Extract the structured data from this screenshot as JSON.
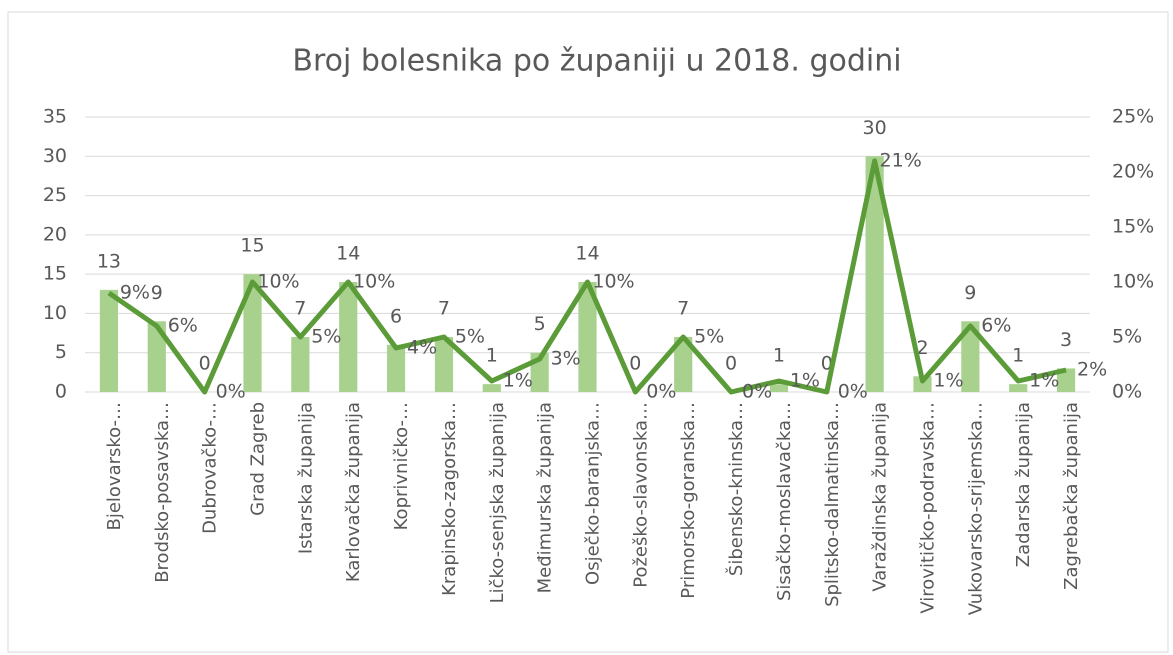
{
  "chart_data": {
    "type": "bar_line",
    "title": "Broj bolesnika po županiji u 2018. godini",
    "categories": [
      "Bjelovarsko-…",
      "Brodsko-posavska…",
      "Dubrovačko-…",
      "Grad Zagreb",
      "Istarska županija",
      "Karlovačka županija",
      "Koprivničko-…",
      "Krapinsko-zagorska…",
      "Ličko-senjska županija",
      "Međimurska županija",
      "Osječko-baranjska…",
      "Požeško-slavonska…",
      "Primorsko-goranska…",
      "Šibensko-kninska…",
      "Sisačko-moslavačka…",
      "Splitsko-dalmatinska…",
      "Varaždinska županija",
      "Virovitičko-podravska…",
      "Vukovarsko-srijemska…",
      "Zadarska županija",
      "Zagrebačka županija"
    ],
    "series": [
      {
        "type": "bar",
        "color": "#a9d18e",
        "values": [
          13,
          9,
          0,
          15,
          7,
          14,
          6,
          7,
          1,
          5,
          14,
          0,
          7,
          0,
          1,
          0,
          30,
          2,
          9,
          1,
          3
        ]
      },
      {
        "type": "line",
        "axis": "y2",
        "color": "#5b9b38",
        "values": [
          9,
          6,
          0,
          10,
          5,
          10,
          4,
          5,
          1,
          3,
          10,
          0,
          5,
          0,
          1,
          0,
          21,
          1,
          6,
          1,
          2
        ],
        "value_labels": [
          "9%",
          "6%",
          "0%",
          "10%",
          "5%",
          "10%",
          "4%",
          "5%",
          "1%",
          "3%",
          "10%",
          "0%",
          "5%",
          "0%",
          "1%",
          "0%",
          "21%",
          "1%",
          "6%",
          "1%",
          "2%"
        ]
      }
    ],
    "ylim": [
      0,
      35
    ],
    "yticks": [
      0,
      5,
      10,
      15,
      20,
      25,
      30,
      35
    ],
    "y2lim": [
      0,
      25
    ],
    "y2ticks": [
      {
        "value": 0,
        "label": "0%"
      },
      {
        "value": 5,
        "label": "5%"
      },
      {
        "value": 10,
        "label": "10%"
      },
      {
        "value": 15,
        "label": "15%"
      },
      {
        "value": 20,
        "label": "20%"
      },
      {
        "value": 25,
        "label": "25%"
      }
    ],
    "grid": true
  }
}
